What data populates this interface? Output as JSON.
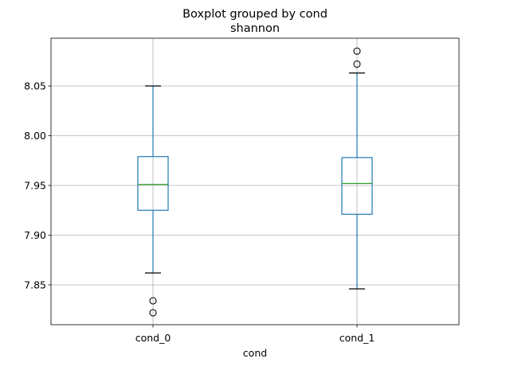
{
  "chart_data": {
    "type": "boxplot",
    "title": "Boxplot grouped by cond",
    "subtitle": "shannon",
    "xlabel": "cond",
    "ylabel": "",
    "categories": [
      "cond_0",
      "cond_1"
    ],
    "ylim": [
      7.81,
      8.098
    ],
    "yticks": [
      7.85,
      7.9,
      7.95,
      8.0,
      8.05
    ],
    "ytick_labels": [
      "7.85",
      "7.90",
      "7.95",
      "8.00",
      "8.05"
    ],
    "grid": true,
    "boxes": [
      {
        "category": "cond_0",
        "whisker_low": 7.862,
        "q1": 7.925,
        "median": 7.951,
        "q3": 7.979,
        "whisker_high": 8.05,
        "outliers": [
          7.834,
          7.822
        ]
      },
      {
        "category": "cond_1",
        "whisker_low": 7.846,
        "q1": 7.921,
        "median": 7.952,
        "q3": 7.978,
        "whisker_high": 8.063,
        "outliers": [
          8.072,
          8.085
        ]
      }
    ],
    "colors": {
      "box": "#1f77b4",
      "median": "#2ca02c",
      "cap": "#000000",
      "grid": "#b0b0b0",
      "outlier": "#000000"
    }
  }
}
